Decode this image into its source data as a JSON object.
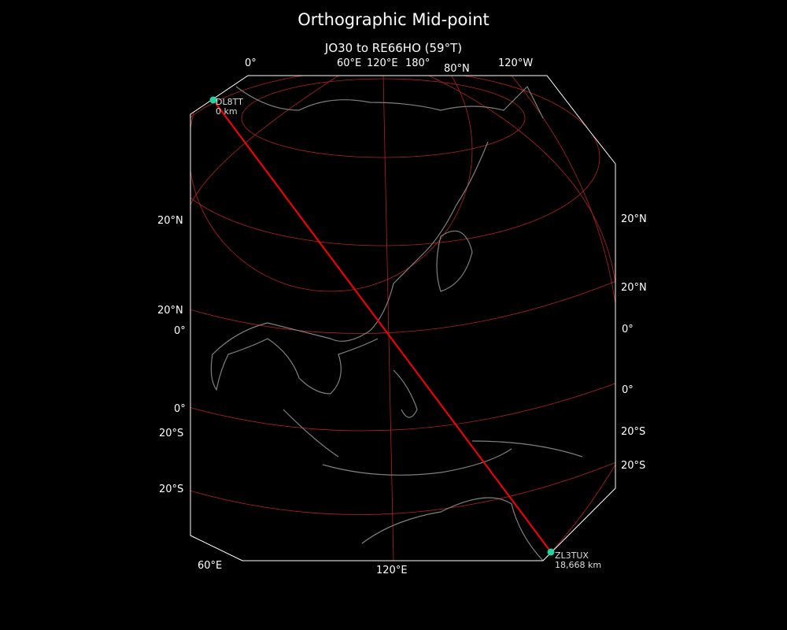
{
  "title": "Orthographic Mid-point",
  "subtitle": "JO30 to RE66HO (59°T)",
  "colors": {
    "background": "#000000",
    "path": "#ff0000",
    "graticule": "#b22222",
    "coast": "#808080",
    "station": "#1fd6a0",
    "border": "#ffffff"
  },
  "top_labels": [
    "0°",
    "60°E",
    "120°E",
    "180°",
    "80°N",
    "120°W"
  ],
  "left_labels": [
    "20°N",
    "20°N",
    "0°",
    "0°",
    "20°S",
    "20°S"
  ],
  "right_labels": [
    "20°N",
    "20°N",
    "0°",
    "0°",
    "20°S",
    "20°S"
  ],
  "bottom_labels": [
    "60°E",
    "120°E"
  ],
  "stations": [
    {
      "call": "DL8TT",
      "distance": "0 km"
    },
    {
      "call": "ZL3TUX",
      "distance": "18,668 km"
    }
  ]
}
